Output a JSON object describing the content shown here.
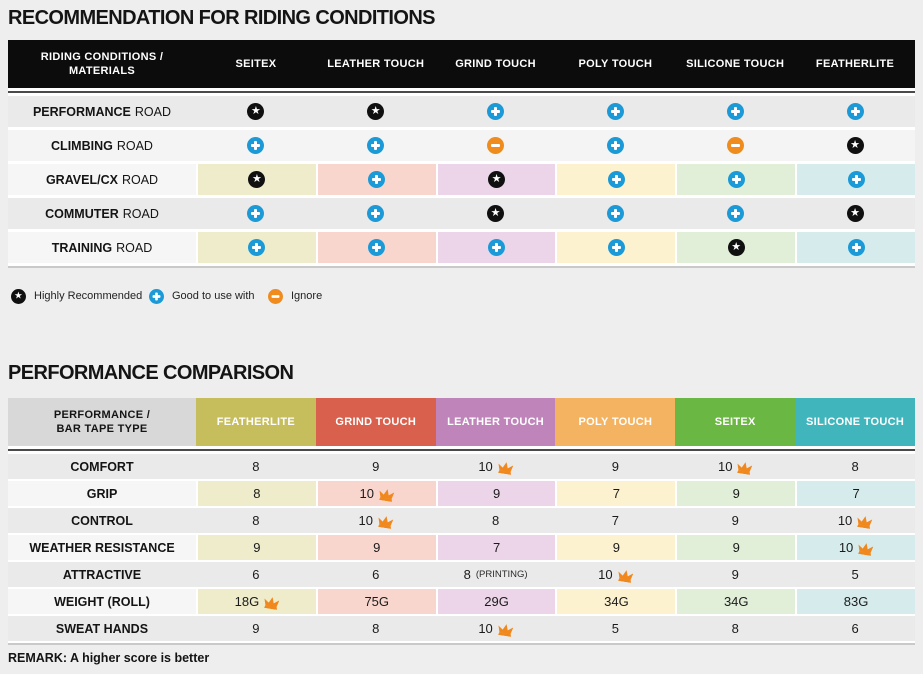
{
  "page": {
    "colors": {
      "page_bg": "#eeeeee",
      "table1_header_bg": "#0c0c0c",
      "star_black": "#101010",
      "plus_blue": "#1b9ad7",
      "minus_orange": "#ef8c1d",
      "crown_orange": "#f0881e",
      "column_tints": [
        "#eeecca",
        "#f8d6cd",
        "#ecd5e9",
        "#fdf2cf",
        "#e1efd8",
        "#d6ebeb"
      ]
    }
  },
  "chart_data": [
    {
      "type": "table",
      "title": "RECOMMENDATION FOR RIDING CONDITIONS",
      "corner_header": [
        "RIDING CONDITIONS /",
        "MATERIALS"
      ],
      "columns": [
        "SEITEX",
        "LEATHER TOUCH",
        "GRIND TOUCH",
        "POLY TOUCH",
        "SILICONE TOUCH",
        "FEATHERLITE"
      ],
      "rows": [
        {
          "label": "PERFORMANCE",
          "label_suffix": "ROAD",
          "cells": [
            "icon-star",
            "icon-star",
            "icon-plus",
            "icon-plus",
            "icon-plus",
            "icon-plus"
          ]
        },
        {
          "label": "CLIMBING",
          "label_suffix": "ROAD",
          "cells": [
            "icon-plus",
            "icon-plus",
            "icon-minus",
            "icon-plus",
            "icon-minus",
            "icon-star"
          ]
        },
        {
          "label": "GRAVEL/CX",
          "label_suffix": "ROAD",
          "cells": [
            "icon-star",
            "icon-plus",
            "icon-star",
            "icon-plus",
            "icon-plus",
            "icon-plus"
          ]
        },
        {
          "label": "COMMUTER",
          "label_suffix": "ROAD",
          "cells": [
            "icon-plus",
            "icon-plus",
            "icon-star",
            "icon-plus",
            "icon-plus",
            "icon-star"
          ]
        },
        {
          "label": "TRAINING",
          "label_suffix": "ROAD",
          "cells": [
            "icon-plus",
            "icon-plus",
            "icon-plus",
            "icon-plus",
            "icon-star",
            "icon-plus"
          ]
        }
      ],
      "legend": [
        {
          "icon": "icon-star",
          "label": "Highly Recommended"
        },
        {
          "icon": "icon-plus",
          "label": "Good to use with"
        },
        {
          "icon": "icon-minus",
          "label": "Ignore"
        }
      ]
    },
    {
      "type": "table",
      "title": "PERFORMANCE COMPARISON",
      "corner_header": [
        "PERFORMANCE /",
        "BAR TAPE TYPE"
      ],
      "columns": [
        {
          "name": "FEATHERLITE",
          "color": "#c6bd5c"
        },
        {
          "name": "GRIND TOUCH",
          "color": "#d8604c"
        },
        {
          "name": "LEATHER TOUCH",
          "color": "#bf85ba"
        },
        {
          "name": "POLY TOUCH",
          "color": "#f4b360"
        },
        {
          "name": "SEITEX",
          "color": "#6bb743"
        },
        {
          "name": "SILICONE TOUCH",
          "color": "#41b5bc"
        }
      ],
      "rows": [
        {
          "label": "COMFORT",
          "cells": [
            {
              "v": "8"
            },
            {
              "v": "9"
            },
            {
              "v": "10",
              "crown": true
            },
            {
              "v": "9"
            },
            {
              "v": "10",
              "crown": true
            },
            {
              "v": "8"
            }
          ]
        },
        {
          "label": "GRIP",
          "cells": [
            {
              "v": "8"
            },
            {
              "v": "10",
              "crown": true
            },
            {
              "v": "9"
            },
            {
              "v": "7"
            },
            {
              "v": "9"
            },
            {
              "v": "7"
            }
          ]
        },
        {
          "label": "CONTROL",
          "cells": [
            {
              "v": "8"
            },
            {
              "v": "10",
              "crown": true
            },
            {
              "v": "8"
            },
            {
              "v": "7"
            },
            {
              "v": "9"
            },
            {
              "v": "10",
              "crown": true
            }
          ]
        },
        {
          "label": "WEATHER RESISTANCE",
          "cells": [
            {
              "v": "9"
            },
            {
              "v": "9"
            },
            {
              "v": "7"
            },
            {
              "v": "9"
            },
            {
              "v": "9"
            },
            {
              "v": "10",
              "crown": true
            }
          ]
        },
        {
          "label": "ATTRACTIVE",
          "cells": [
            {
              "v": "6"
            },
            {
              "v": "6"
            },
            {
              "v": "8",
              "suffix": "(PRINTING)"
            },
            {
              "v": "10",
              "crown": true
            },
            {
              "v": "9"
            },
            {
              "v": "5"
            }
          ]
        },
        {
          "label": "WEIGHT (ROLL)",
          "cells": [
            {
              "v": "18G",
              "crown": true
            },
            {
              "v": "75G"
            },
            {
              "v": "29G"
            },
            {
              "v": "34G"
            },
            {
              "v": "34G"
            },
            {
              "v": "83G"
            }
          ]
        },
        {
          "label": "SWEAT HANDS",
          "cells": [
            {
              "v": "9"
            },
            {
              "v": "8"
            },
            {
              "v": "10",
              "crown": true
            },
            {
              "v": "5"
            },
            {
              "v": "8"
            },
            {
              "v": "6"
            }
          ]
        }
      ],
      "remark": "REMARK: A higher score is better"
    }
  ]
}
